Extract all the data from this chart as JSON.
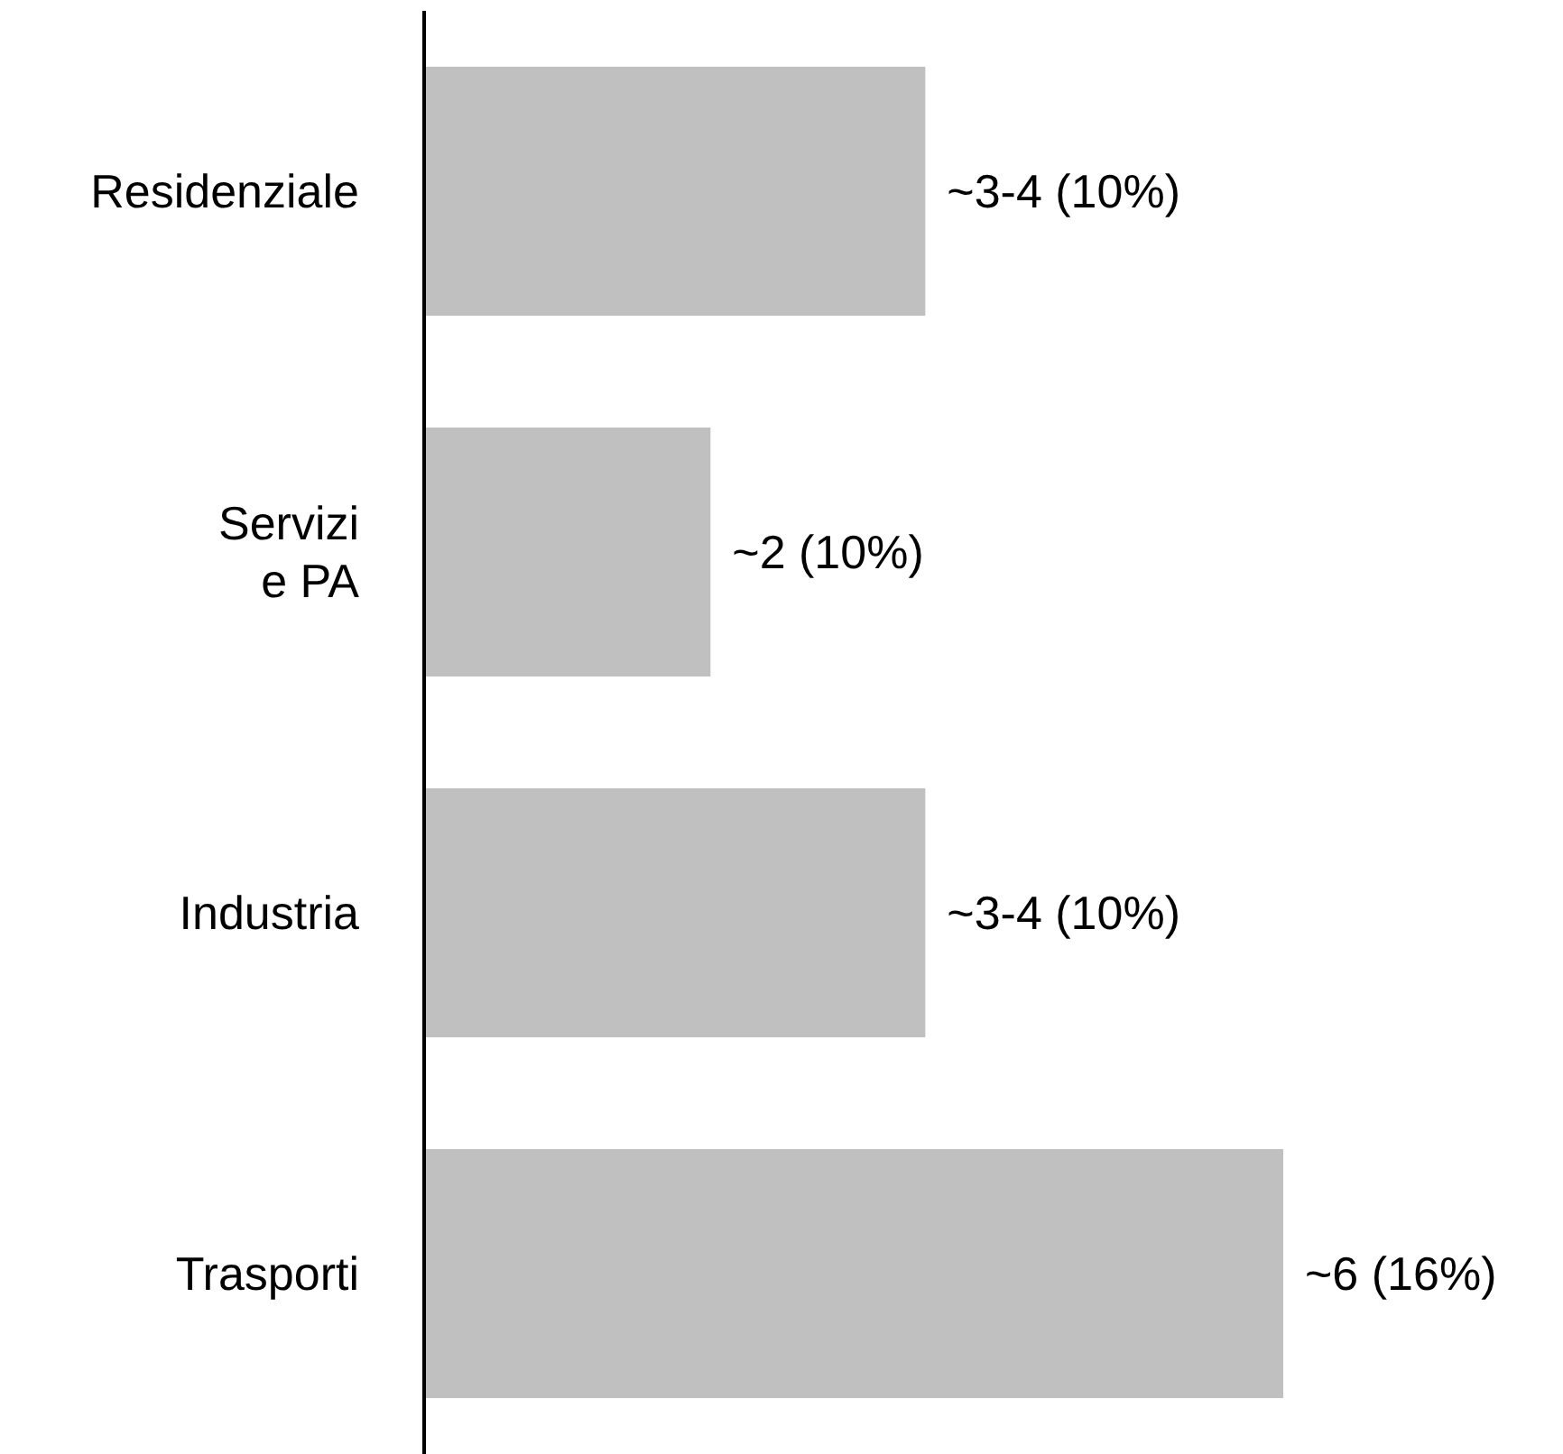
{
  "chart_data": {
    "type": "bar",
    "orientation": "horizontal",
    "categories": [
      "Residenziale",
      "Servizi\ne PA",
      "Industria",
      "Trasporti"
    ],
    "values": [
      3.5,
      2,
      3.5,
      6
    ],
    "value_labels": [
      "~3-4 (10%)",
      "~2 (10%)",
      "~3-4 (10%)",
      "~6 (16%)"
    ],
    "xlim": [
      0,
      6
    ],
    "color": "#c0c0c0",
    "grid": false,
    "legend": false
  }
}
